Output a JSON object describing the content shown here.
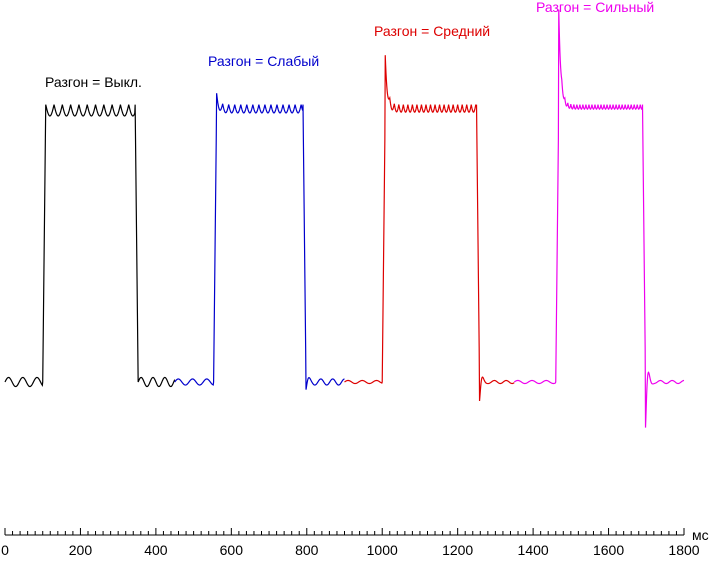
{
  "chart_data": {
    "type": "line",
    "title": "",
    "xlabel": "мс",
    "ylabel": "",
    "xlim": [
      0,
      1800
    ],
    "ylim": [
      0,
      1
    ],
    "grid": false,
    "x_ticks": [
      0,
      200,
      400,
      600,
      800,
      1000,
      1200,
      1400,
      1600,
      1800
    ],
    "x_tick_labels": [
      "0",
      "200",
      "400",
      "600",
      "800",
      "1000",
      "1200",
      "1400",
      "1600",
      "1800"
    ],
    "minor_tick_step": 20,
    "series": [
      {
        "name": "Разгон = Выкл.",
        "color": "#000000",
        "x_range": [
          0,
          450
        ],
        "low": 0.1,
        "high": 0.83,
        "rise_at": 100,
        "fall_at": 345,
        "overshoot_up": 0.0,
        "overshoot_down": 0.0,
        "ripple_amp_high": 0.03,
        "ripple_period": 22,
        "ripple_amp_low": 0.012
      },
      {
        "name": "Разгон = Слабый",
        "color": "#0000cc",
        "x_range": [
          450,
          900
        ],
        "low": 0.1,
        "high": 0.83,
        "rise_at": 553,
        "fall_at": 790,
        "overshoot_up": 0.03,
        "overshoot_down": 0.02,
        "ripple_amp_high": 0.022,
        "ripple_period": 16,
        "ripple_amp_low": 0.008
      },
      {
        "name": "Разгон = Средний",
        "color": "#dd0000",
        "x_range": [
          900,
          1350
        ],
        "low": 0.1,
        "high": 0.83,
        "rise_at": 1000,
        "fall_at": 1250,
        "overshoot_up": 0.13,
        "overshoot_down": 0.05,
        "ripple_amp_high": 0.02,
        "ripple_period": 12,
        "ripple_amp_low": 0.004
      },
      {
        "name": "Разгон = Сильный",
        "color": "#ee00ee",
        "x_range": [
          1350,
          1800
        ],
        "low": 0.1,
        "high": 0.83,
        "rise_at": 1460,
        "fall_at": 1690,
        "overshoot_up": 0.25,
        "overshoot_down": 0.12,
        "ripple_amp_high": 0.012,
        "ripple_period": 8,
        "ripple_amp_low": 0.004
      }
    ]
  }
}
